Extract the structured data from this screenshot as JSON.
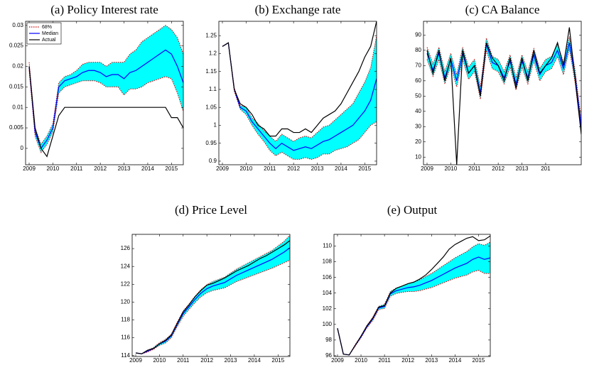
{
  "chart_data": [
    {
      "type": "line",
      "title": "(a) Policy Interest rate",
      "x": [
        2009,
        2009.25,
        2009.5,
        2009.75,
        2010,
        2010.25,
        2010.5,
        2010.75,
        2011,
        2011.25,
        2011.5,
        2011.75,
        2012,
        2012.25,
        2012.5,
        2012.75,
        2013,
        2013.25,
        2013.5,
        2013.75,
        2014,
        2014.25,
        2014.5,
        2014.75,
        2015,
        2015.25,
        2015.5
      ],
      "xlim": [
        2008.85,
        2015.5
      ],
      "xticks": [
        2009,
        2010,
        2011,
        2012,
        2013,
        2014,
        2015
      ],
      "ylim": [
        -0.004,
        0.031
      ],
      "yticks": [
        0,
        0.005,
        0.01,
        0.015,
        0.02,
        0.025,
        0.03
      ],
      "legend": "upper left",
      "band": {
        "name": "68%",
        "color": "#cc0000",
        "fill": "#00ffff",
        "upper": [
          0.021,
          0.005,
          0.001,
          0.003,
          0.006,
          0.016,
          0.0175,
          0.018,
          0.019,
          0.0205,
          0.021,
          0.021,
          0.021,
          0.02,
          0.021,
          0.021,
          0.021,
          0.023,
          0.024,
          0.026,
          0.027,
          0.028,
          0.029,
          0.03,
          0.029,
          0.027,
          0.023
        ],
        "lower": [
          0.019,
          0.003,
          -0.001,
          0.001,
          0.004,
          0.0135,
          0.015,
          0.0155,
          0.016,
          0.0165,
          0.0165,
          0.0165,
          0.016,
          0.015,
          0.015,
          0.015,
          0.013,
          0.0145,
          0.0145,
          0.015,
          0.016,
          0.0165,
          0.017,
          0.0175,
          0.017,
          0.0135,
          0.009
        ]
      },
      "series": [
        {
          "name": "Median",
          "color": "#0000ff",
          "values": [
            0.02,
            0.004,
            0,
            0.002,
            0.005,
            0.015,
            0.0165,
            0.017,
            0.0175,
            0.0185,
            0.019,
            0.019,
            0.0185,
            0.0175,
            0.018,
            0.018,
            0.017,
            0.0185,
            0.019,
            0.02,
            0.021,
            0.022,
            0.023,
            0.024,
            0.023,
            0.02,
            0.016
          ]
        },
        {
          "name": "Actual",
          "color": "#000000",
          "values": [
            0.02,
            0.005,
            0,
            -0.002,
            0.003,
            0.008,
            0.01,
            0.01,
            0.01,
            0.01,
            0.01,
            0.01,
            0.01,
            0.01,
            0.01,
            0.01,
            0.01,
            0.01,
            0.01,
            0.01,
            0.01,
            0.01,
            0.01,
            0.01,
            0.0075,
            0.0075,
            0.005
          ]
        }
      ]
    },
    {
      "type": "line",
      "title": "(b) Exchange rate",
      "x": [
        2009,
        2009.25,
        2009.5,
        2009.75,
        2010,
        2010.25,
        2010.5,
        2010.75,
        2011,
        2011.25,
        2011.5,
        2011.75,
        2012,
        2012.25,
        2012.5,
        2012.75,
        2013,
        2013.25,
        2013.5,
        2013.75,
        2014,
        2014.25,
        2014.5,
        2014.75,
        2015,
        2015.25,
        2015.5
      ],
      "xlim": [
        2008.85,
        2015.5
      ],
      "xticks": [
        2009,
        2010,
        2011,
        2012,
        2013,
        2014,
        2015
      ],
      "ylim": [
        0.89,
        1.29
      ],
      "yticks": [
        0.9,
        0.95,
        1,
        1.05,
        1.1,
        1.15,
        1.2,
        1.25
      ],
      "band": {
        "color": "#cc0000",
        "fill": "#00ffff",
        "upper": [
          1.22,
          1.23,
          1.105,
          1.055,
          1.05,
          1.02,
          1.005,
          0.985,
          0.97,
          0.955,
          0.975,
          0.965,
          0.955,
          0.965,
          0.97,
          0.965,
          0.98,
          0.995,
          1.0,
          1.015,
          1.03,
          1.045,
          1.06,
          1.09,
          1.12,
          1.16,
          1.25
        ],
        "lower": [
          1.22,
          1.23,
          1.095,
          1.045,
          1.03,
          1.0,
          0.975,
          0.955,
          0.93,
          0.915,
          0.925,
          0.915,
          0.905,
          0.905,
          0.91,
          0.905,
          0.91,
          0.92,
          0.92,
          0.93,
          0.935,
          0.94,
          0.95,
          0.96,
          0.98,
          1.0,
          1.01
        ]
      },
      "series": [
        {
          "color": "#0000ff",
          "values": [
            1.22,
            1.23,
            1.1,
            1.05,
            1.04,
            1.01,
            0.99,
            0.97,
            0.95,
            0.935,
            0.95,
            0.94,
            0.93,
            0.935,
            0.94,
            0.935,
            0.945,
            0.955,
            0.96,
            0.97,
            0.98,
            0.99,
            1.0,
            1.02,
            1.04,
            1.07,
            1.13
          ]
        },
        {
          "color": "#000000",
          "values": [
            1.22,
            1.23,
            1.1,
            1.06,
            1.05,
            1.03,
            1.0,
            0.99,
            0.97,
            0.97,
            0.99,
            0.99,
            0.98,
            0.98,
            0.99,
            0.98,
            1.0,
            1.02,
            1.03,
            1.04,
            1.06,
            1.09,
            1.12,
            1.15,
            1.19,
            1.22,
            1.29
          ]
        }
      ]
    },
    {
      "type": "line",
      "title": "(c) CA Balance",
      "x": [
        2009,
        2009.25,
        2009.5,
        2009.75,
        2010,
        2010.25,
        2010.5,
        2010.75,
        2011,
        2011.25,
        2011.5,
        2011.75,
        2012,
        2012.25,
        2012.5,
        2012.75,
        2013,
        2013.25,
        2013.5,
        2013.75,
        2014,
        2014.25,
        2014.5,
        2014.75,
        2015,
        2015.25,
        2015.5
      ],
      "xlim": [
        2008.85,
        2015.5
      ],
      "xticks": [
        2009,
        2010,
        2011,
        2012,
        2013,
        {
          "value": 2014,
          "label": "201"
        }
      ],
      "ylim": [
        5,
        99
      ],
      "yticks": [
        10,
        20,
        30,
        40,
        50,
        60,
        70,
        80,
        90
      ],
      "band": {
        "color": "#cc0000",
        "fill": "#00ffff",
        "upper": [
          82,
          71,
          82,
          66,
          78,
          64,
          82,
          69,
          74,
          56,
          88,
          76,
          74,
          66,
          77,
          62,
          77,
          66,
          81,
          68,
          74,
          76,
          84,
          72,
          89,
          66,
          34
        ],
        "lower": [
          74,
          63,
          74,
          58,
          70,
          56,
          74,
          61,
          66,
          48,
          80,
          68,
          66,
          58,
          69,
          54,
          69,
          58,
          73,
          60,
          66,
          68,
          76,
          64,
          81,
          58,
          26
        ]
      },
      "series": [
        {
          "color": "#0000ff",
          "values": [
            78,
            67,
            78,
            62,
            74,
            60,
            78,
            65,
            70,
            52,
            84,
            72,
            70,
            62,
            73,
            58,
            73,
            62,
            77,
            64,
            70,
            72,
            80,
            68,
            85,
            62,
            30
          ]
        },
        {
          "color": "#000000",
          "values": [
            80,
            65,
            80,
            60,
            75,
            5,
            80,
            65,
            70,
            50,
            85,
            75,
            70,
            60,
            75,
            55,
            75,
            60,
            80,
            65,
            70,
            75,
            85,
            70,
            95,
            60,
            25
          ]
        }
      ]
    },
    {
      "type": "line",
      "title": "(d) Price Level",
      "x": [
        2009,
        2009.25,
        2009.5,
        2009.75,
        2010,
        2010.25,
        2010.5,
        2010.75,
        2011,
        2011.25,
        2011.5,
        2011.75,
        2012,
        2012.25,
        2012.5,
        2012.75,
        2013,
        2013.25,
        2013.5,
        2013.75,
        2014,
        2014.25,
        2014.5,
        2014.75,
        2015,
        2015.25,
        2015.5
      ],
      "xlim": [
        2008.85,
        2015.5
      ],
      "xticks": [
        2009,
        2010,
        2011,
        2012,
        2013,
        2014,
        2015
      ],
      "ylim": [
        113.9,
        127.6
      ],
      "yticks": [
        114,
        116,
        118,
        120,
        122,
        124,
        126
      ],
      "band": {
        "color": "#cc0000",
        "fill": "#00ffff",
        "upper": [
          114.3,
          114.2,
          114.6,
          114.9,
          115.45,
          115.8,
          116.4,
          117.75,
          119.0,
          119.8,
          120.65,
          121.4,
          121.95,
          122.3,
          122.55,
          122.8,
          123.25,
          123.7,
          124.05,
          124.4,
          124.75,
          125.1,
          125.45,
          125.8,
          126.3,
          126.8,
          127.5
        ],
        "lower": [
          114.3,
          114.2,
          114.4,
          114.7,
          115.15,
          115.4,
          116.0,
          117.25,
          118.4,
          119.2,
          119.95,
          120.6,
          121.05,
          121.3,
          121.45,
          121.6,
          121.95,
          122.3,
          122.55,
          122.8,
          123.05,
          123.3,
          123.55,
          123.8,
          124.1,
          124.4,
          124.7
        ]
      },
      "series": [
        {
          "color": "#0000ff",
          "values": [
            114.3,
            114.2,
            114.5,
            114.8,
            115.3,
            115.6,
            116.2,
            117.5,
            118.7,
            119.5,
            120.3,
            121.0,
            121.5,
            121.8,
            122.0,
            122.2,
            122.6,
            123.0,
            123.3,
            123.6,
            123.9,
            124.2,
            124.5,
            124.8,
            125.2,
            125.6,
            126.1
          ]
        },
        {
          "color": "#000000",
          "values": [
            114.3,
            114.2,
            114.6,
            114.8,
            115.3,
            115.7,
            116.3,
            117.6,
            118.9,
            119.7,
            120.6,
            121.3,
            121.9,
            122.1,
            122.4,
            122.7,
            123.1,
            123.5,
            123.8,
            124.1,
            124.5,
            124.9,
            125.2,
            125.6,
            126.0,
            126.4,
            126.9
          ]
        }
      ]
    },
    {
      "type": "line",
      "title": "(e) Output",
      "x": [
        2009,
        2009.25,
        2009.5,
        2009.75,
        2010,
        2010.25,
        2010.5,
        2010.75,
        2011,
        2011.25,
        2011.5,
        2011.75,
        2012,
        2012.25,
        2012.5,
        2012.75,
        2013,
        2013.25,
        2013.5,
        2013.75,
        2014,
        2014.25,
        2014.5,
        2014.75,
        2015,
        2015.25,
        2015.5
      ],
      "xlim": [
        2008.85,
        2015.5
      ],
      "xticks": [
        2009,
        2010,
        2011,
        2012,
        2013,
        2014,
        2015
      ],
      "ylim": [
        95.9,
        111.5
      ],
      "yticks": [
        96,
        98,
        100,
        102,
        104,
        106,
        108,
        110
      ],
      "band": {
        "color": "#cc0000",
        "fill": "#00ffff",
        "upper": [
          99.5,
          96.2,
          96.1,
          97.4,
          98.5,
          99.85,
          100.9,
          102.3,
          102.55,
          104.2,
          104.65,
          104.9,
          105.2,
          105.4,
          105.7,
          106.1,
          106.5,
          107.0,
          107.5,
          108.0,
          108.5,
          108.9,
          109.3,
          109.9,
          110.3,
          110.1,
          110.5
        ],
        "lower": [
          99.5,
          96.2,
          96.1,
          97.2,
          98.3,
          99.55,
          100.5,
          101.9,
          102.05,
          103.6,
          103.95,
          104.1,
          104.2,
          104.2,
          104.3,
          104.5,
          104.7,
          105.0,
          105.3,
          105.6,
          105.9,
          106.1,
          106.3,
          106.7,
          106.9,
          106.5,
          106.5
        ]
      },
      "series": [
        {
          "color": "#0000ff",
          "values": [
            99.5,
            96.2,
            96.1,
            97.3,
            98.4,
            99.7,
            100.7,
            102.1,
            102.3,
            103.9,
            104.3,
            104.5,
            104.7,
            104.8,
            105.0,
            105.3,
            105.6,
            106.0,
            106.4,
            106.8,
            107.2,
            107.5,
            107.8,
            108.3,
            108.6,
            108.3,
            108.5
          ]
        },
        {
          "color": "#000000",
          "values": [
            99.5,
            96.2,
            96.1,
            97.3,
            98.5,
            99.8,
            100.8,
            102.2,
            102.4,
            104.0,
            104.6,
            104.9,
            105.2,
            105.4,
            105.8,
            106.3,
            107.0,
            107.8,
            108.6,
            109.6,
            110.2,
            110.6,
            111.0,
            111.2,
            110.7,
            110.8,
            111.3
          ]
        }
      ]
    }
  ]
}
